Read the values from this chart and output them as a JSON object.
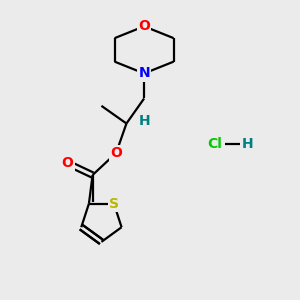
{
  "bg_color": "#ebebeb",
  "bond_color": "#000000",
  "bond_width": 1.6,
  "atom_colors": {
    "O": "#ff0000",
    "N": "#0000ff",
    "S": "#b8b800",
    "H": "#008080",
    "Cl": "#00cc00",
    "C": "#000000"
  },
  "font_size": 10,
  "hcl_font_size": 10
}
